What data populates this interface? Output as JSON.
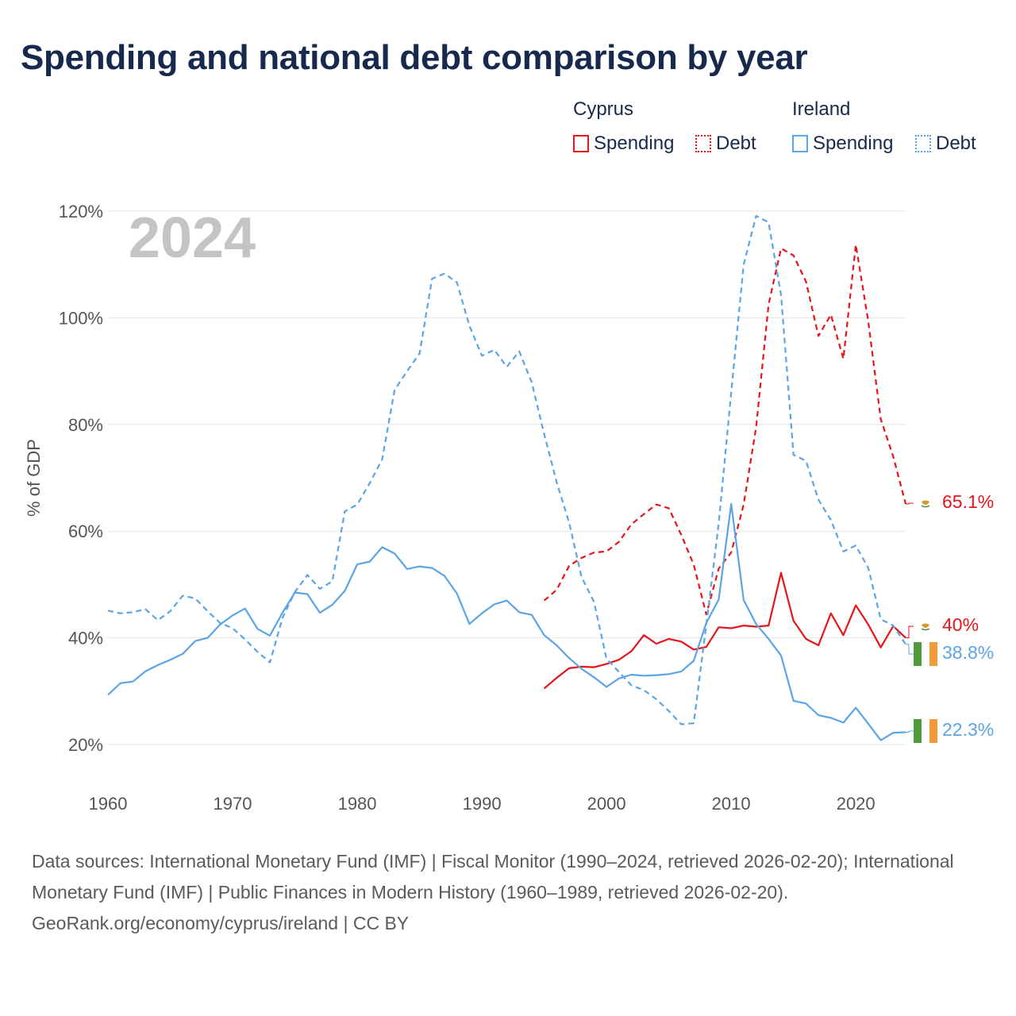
{
  "title": "Spending and national debt comparison by year",
  "legend": {
    "groups": [
      {
        "name": "Cyprus",
        "items": [
          {
            "label": "Spending",
            "style": "solid"
          },
          {
            "label": "Debt",
            "style": "dotted"
          }
        ],
        "color": "#e8141c"
      },
      {
        "name": "Ireland",
        "items": [
          {
            "label": "Spending",
            "style": "solid"
          },
          {
            "label": "Debt",
            "style": "dotted"
          }
        ],
        "color": "#5ba4e5"
      }
    ]
  },
  "chart_data": {
    "type": "line",
    "title": "Spending and national debt comparison by year",
    "ylabel": "% of GDP",
    "xlabel": "",
    "year_watermark": "2024",
    "xlim": [
      1960,
      2024
    ],
    "ylim": [
      20,
      120
    ],
    "x_ticks": [
      1960,
      1970,
      1980,
      1990,
      2000,
      2010,
      2020
    ],
    "y_ticks": [
      20,
      40,
      60,
      80,
      100,
      120
    ],
    "y_tick_labels": [
      "20%",
      "40%",
      "60%",
      "80%",
      "100%",
      "120%"
    ],
    "series": [
      {
        "name": "Cyprus Debt",
        "country": "Cyprus",
        "metric": "Debt",
        "color": "#e8141c",
        "dash": "dashed",
        "start_year": 1995,
        "values": [
          47,
          49,
          53.5,
          55,
          56,
          56.2,
          58,
          61.3,
          63.2,
          65,
          64.3,
          59.3,
          53.7,
          44.4,
          53,
          56,
          65,
          79.5,
          102.5,
          113,
          111.7,
          106.8,
          96.6,
          100.6,
          92.3,
          113.7,
          99.3,
          81,
          74,
          65.1
        ],
        "end_label": "65.1%"
      },
      {
        "name": "Cyprus Spending",
        "country": "Cyprus",
        "metric": "Spending",
        "color": "#e8141c",
        "dash": "solid",
        "start_year": 1995,
        "values": [
          30.5,
          32.5,
          34.3,
          34.6,
          34.5,
          35.1,
          35.9,
          37.5,
          40.5,
          38.9,
          39.8,
          39.3,
          37.8,
          38.3,
          42,
          41.8,
          42.3,
          42.1,
          42.3,
          52.2,
          43.2,
          39.8,
          38.6,
          44.6,
          40.5,
          46.1,
          42.5,
          38.2,
          42.2,
          40
        ],
        "end_label": "40%"
      },
      {
        "name": "Ireland Debt",
        "country": "Ireland",
        "metric": "Debt",
        "color": "#5ba4e5",
        "dash": "dashed",
        "start_year": 1960,
        "values": [
          45.1,
          44.6,
          44.8,
          45.4,
          43.3,
          45.0,
          47.9,
          47.4,
          45.0,
          42.8,
          41.8,
          39.7,
          37.4,
          35.4,
          43.7,
          48.6,
          51.8,
          49.2,
          50.6,
          63.7,
          65.0,
          69.0,
          73.5,
          86.5,
          90.0,
          93.3,
          107.3,
          108.3,
          106.6,
          98.5,
          92.9,
          94.0,
          90.8,
          93.7,
          87.9,
          78.2,
          69.2,
          61.6,
          51.4,
          46.7,
          36.1,
          33.6,
          31.1,
          30.2,
          28.5,
          26.3,
          23.8,
          24.0,
          42.4,
          61.5,
          86.0,
          110.0,
          119.1,
          117.9,
          104.3,
          74.3,
          73.2,
          65.9,
          62.1,
          56.2,
          57.3,
          53.1,
          43.5,
          42.3,
          38.8
        ],
        "end_label": "38.8%"
      },
      {
        "name": "Ireland Spending",
        "country": "Ireland",
        "metric": "Spending",
        "color": "#5ba4e5",
        "dash": "solid",
        "start_year": 1960,
        "values": [
          29.3,
          31.5,
          31.8,
          33.7,
          34.9,
          35.9,
          37.0,
          39.4,
          40.0,
          42.5,
          44.2,
          45.5,
          41.7,
          40.4,
          44.7,
          48.5,
          48.2,
          44.7,
          46.2,
          48.8,
          53.8,
          54.3,
          57.0,
          55.8,
          52.9,
          53.4,
          53.1,
          51.6,
          48.3,
          42.6,
          44.6,
          46.3,
          47.0,
          44.8,
          44.3,
          40.5,
          38.6,
          36.2,
          34.2,
          32.6,
          30.8,
          32.4,
          33.1,
          32.9,
          33.0,
          33.2,
          33.7,
          35.7,
          42.8,
          47.2,
          65.1,
          47.1,
          42.6,
          39.8,
          36.7,
          28.2,
          27.7,
          25.5,
          25.0,
          24.1,
          26.9,
          23.9,
          20.8,
          22.2,
          22.3
        ],
        "end_label": "22.3%"
      }
    ]
  },
  "footer": {
    "sources": "Data sources: International Monetary Fund (IMF) | Fiscal Monitor (1990–2024, retrieved 2026-02-20); International Monetary Fund (IMF) | Public Finances in Modern History (1960–1989, retrieved 2026-02-20).",
    "credit": "GeoRank.org/economy/cyprus/ireland | CC BY"
  }
}
